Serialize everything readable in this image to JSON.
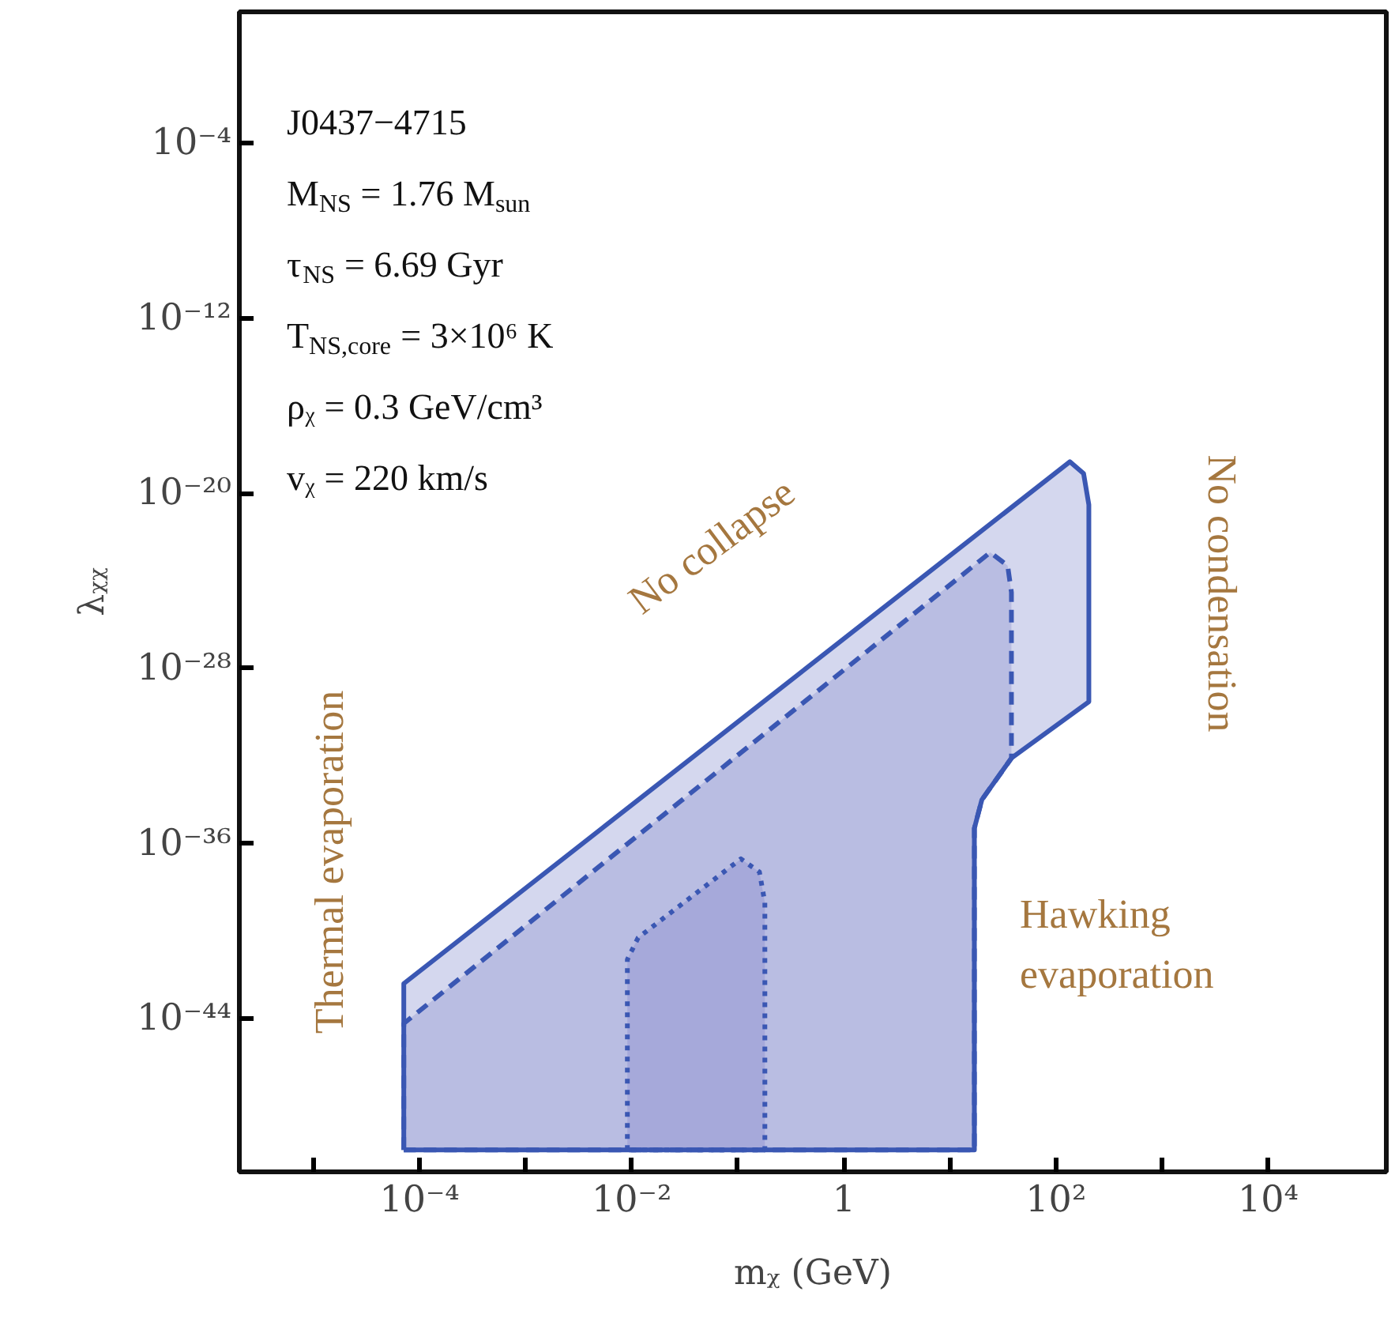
{
  "chart_data": {
    "type": "area",
    "xlabel": "mᵪ (GeV)",
    "ylabel": "λᵪᵪ",
    "log": "xy",
    "grid": false,
    "xlim": [
      2e-06,
      130000.0
    ],
    "ylim": [
      1e-51,
      100.0
    ],
    "xticks": [
      {
        "value": 1e-05,
        "label": null
      },
      {
        "value": 0.0001,
        "label": "10⁻⁴"
      },
      {
        "value": 0.001,
        "label": null
      },
      {
        "value": 0.01,
        "label": "10⁻²"
      },
      {
        "value": 0.1,
        "label": null
      },
      1,
      {
        "value": 10,
        "label": null
      },
      {
        "value": 100,
        "label": "10²"
      },
      {
        "value": 1000,
        "label": null
      },
      {
        "value": 10000.0,
        "label": "10⁴"
      }
    ],
    "yticks": [
      {
        "value": 1e-44,
        "label": "10⁻⁴⁴"
      },
      {
        "value": 1e-36,
        "label": "10⁻³⁶"
      },
      {
        "value": 1e-28,
        "label": "10⁻²⁸"
      },
      {
        "value": 1e-20,
        "label": "10⁻²⁰"
      },
      {
        "value": 1e-12,
        "label": "10⁻¹²"
      },
      {
        "value": 0.0001,
        "label": "10⁻⁴"
      }
    ],
    "series": [
      {
        "color": "#d4d7ee",
        "line_style": "solid",
        "x": [
          7.1e-05,
          7.1e-05,
          135,
          182,
          204,
          204,
          38,
          20,
          17,
          17
        ],
        "values": [
          1e-50,
          4e-43,
          2.8e-19,
          8e-20,
          3e-21,
          3e-30,
          8e-33,
          1e-34,
          5e-36,
          1e-50
        ]
      },
      {
        "color": "#b9bde2",
        "line_style": "dashed",
        "x": [
          7.1e-05,
          7.1e-05,
          24,
          35,
          38,
          38,
          20,
          17,
          17
        ],
        "values": [
          1e-50,
          6e-45,
          2e-23,
          5e-24,
          3e-25,
          8e-33,
          1e-34,
          5e-36,
          1e-50
        ]
      },
      {
        "color": "#a6a9da",
        "line_style": "dotted",
        "x": [
          0.0091,
          0.0091,
          0.0115,
          0.107,
          0.16,
          0.18,
          0.18
        ],
        "values": [
          1e-50,
          5e-42,
          5e-41,
          2e-37,
          5e-38,
          2e-39,
          1e-50
        ]
      }
    ],
    "annotations": [
      "J0437−4715",
      "M$_{NS}$ = 1.76 M$_{sun}$",
      "τ$_{NS}$ = 6.69 Gyr",
      "T$_{NS,core}$ = 3×10⁶ K",
      "ρᵪ = 0.3 GeV/cm³",
      "vᵪ = 220 km/s",
      "Thermal evaporation",
      "No collapse",
      "No condensation",
      "Hawking\nevaporation"
    ]
  }
}
